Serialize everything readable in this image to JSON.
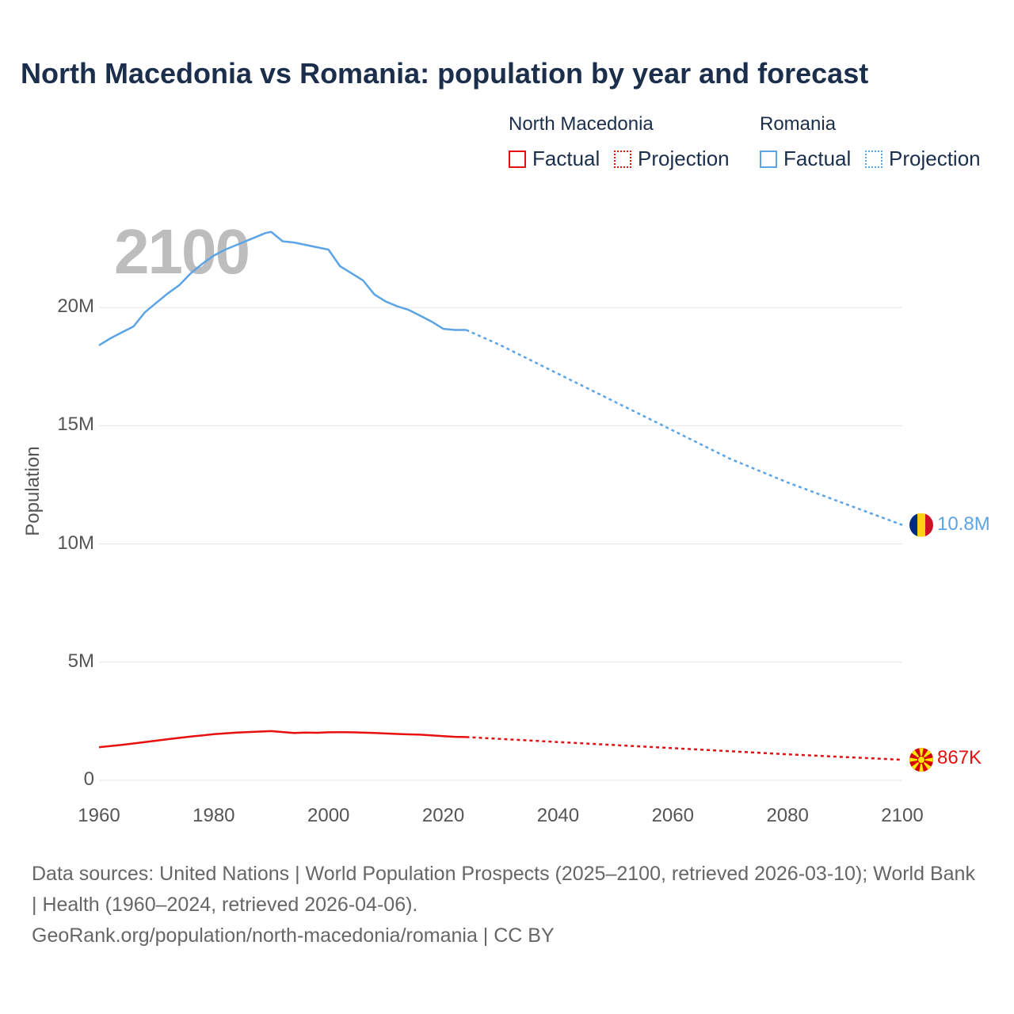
{
  "title": "North Macedonia vs Romania: population by year and forecast",
  "year_overlay": "2100",
  "legend": {
    "groups": [
      {
        "name": "North Macedonia",
        "color": "#e8100f",
        "factual_label": "Factual",
        "projection_label": "Projection"
      },
      {
        "name": "Romania",
        "color": "#5ba4e6",
        "factual_label": "Factual",
        "projection_label": "Projection"
      }
    ]
  },
  "footer": {
    "line1": "Data sources: United Nations | World Population Prospects (2025–2100, retrieved 2026-03-10); World Bank | Health (1960–2024, retrieved 2026-04-06).",
    "line2": "GeoRank.org/population/north-macedonia/romania | CC BY"
  },
  "chart_data": {
    "type": "line",
    "title": "North Macedonia vs Romania: population by year and forecast",
    "xlabel": "",
    "ylabel": "Population",
    "xlim": [
      1960,
      2100
    ],
    "ylim": [
      0,
      25000000
    ],
    "x_ticks": [
      1960,
      1980,
      2000,
      2020,
      2040,
      2060,
      2080,
      2100
    ],
    "y_ticks": [
      0,
      5000000,
      10000000,
      15000000,
      20000000
    ],
    "y_tick_labels": [
      "0",
      "5M",
      "10M",
      "15M",
      "20M"
    ],
    "grid": true,
    "series": [
      {
        "name": "Romania",
        "color": "#5ba4e6",
        "end_label": "10.8M",
        "factual": {
          "x": [
            1960,
            1962,
            1964,
            1966,
            1968,
            1970,
            1972,
            1974,
            1976,
            1978,
            1980,
            1982,
            1984,
            1986,
            1988,
            1989,
            1990,
            1992,
            1994,
            1996,
            1998,
            2000,
            2002,
            2004,
            2006,
            2008,
            2010,
            2012,
            2014,
            2016,
            2018,
            2020,
            2022,
            2024
          ],
          "y": [
            18400000,
            18700000,
            18950000,
            19200000,
            19800000,
            20200000,
            20600000,
            20950000,
            21450000,
            21850000,
            22200000,
            22450000,
            22650000,
            22850000,
            23050000,
            23150000,
            23200000,
            22800000,
            22750000,
            22650000,
            22550000,
            22450000,
            21750000,
            21450000,
            21150000,
            20550000,
            20250000,
            20050000,
            19900000,
            19650000,
            19400000,
            19100000,
            19050000,
            19050000
          ]
        },
        "projection": {
          "x": [
            2024,
            2030,
            2040,
            2050,
            2060,
            2070,
            2080,
            2090,
            2100
          ],
          "y": [
            19050000,
            18400000,
            17200000,
            16000000,
            14800000,
            13600000,
            12600000,
            11700000,
            10800000
          ]
        }
      },
      {
        "name": "North Macedonia",
        "color": "#e8100f",
        "end_label": "867K",
        "factual": {
          "x": [
            1960,
            1964,
            1968,
            1972,
            1976,
            1980,
            1984,
            1988,
            1990,
            1992,
            1994,
            1996,
            1998,
            2000,
            2002,
            2004,
            2008,
            2012,
            2016,
            2020,
            2022,
            2024
          ],
          "y": [
            1400000,
            1500000,
            1620000,
            1740000,
            1850000,
            1950000,
            2020000,
            2060000,
            2080000,
            2040000,
            2000000,
            2020000,
            2010000,
            2030000,
            2035000,
            2030000,
            2000000,
            1960000,
            1930000,
            1870000,
            1840000,
            1830000
          ]
        },
        "projection": {
          "x": [
            2024,
            2040,
            2060,
            2080,
            2100
          ],
          "y": [
            1830000,
            1620000,
            1360000,
            1100000,
            867000
          ]
        }
      }
    ]
  }
}
